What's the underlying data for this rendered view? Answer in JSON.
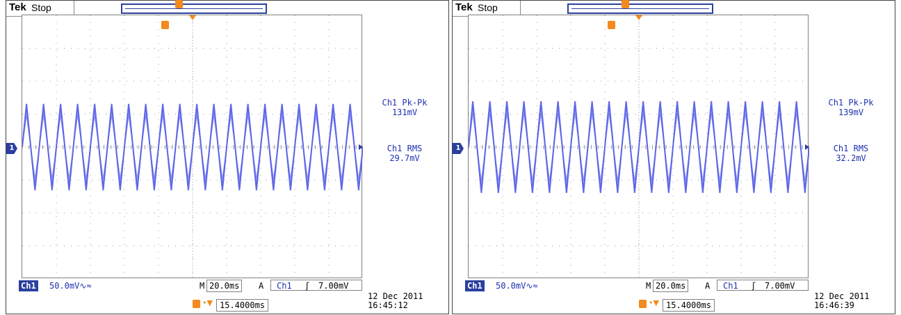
{
  "colors": {
    "trace": "#5a63e8",
    "channel": "#2a3f9e",
    "accent": "#f28a1d",
    "grid": "#9a9a9a"
  },
  "scopes": [
    {
      "brand": "Tek",
      "status": "Stop",
      "measurements": {
        "pkpk_label": "Ch1 Pk-Pk",
        "pkpk_value": "131mV",
        "rms_label": "Ch1 RMS",
        "rms_value": "29.7mV"
      },
      "channel_label": "Ch1",
      "channel_scale": "50.0mV∿≈",
      "m_label": "M",
      "timebase": "20.0ms",
      "a_label": "A",
      "trigger_source": "Ch1",
      "trigger_slope": "ʃ",
      "trigger_level": "7.00mV",
      "trigger_position": "15.4000ms",
      "date": "12 Dec 2011",
      "time": "16:45:12",
      "ch1_marker": "1",
      "trigger_icon": "T",
      "chart_data": {
        "type": "line",
        "amplitude_pkpk_mV": 131,
        "rms_mV": 29.7,
        "cycles_visible": 20,
        "timebase_ms_per_div": 20.0
      }
    },
    {
      "brand": "Tek",
      "status": "Stop",
      "measurements": {
        "pkpk_label": "Ch1 Pk-Pk",
        "pkpk_value": "139mV",
        "rms_label": "Ch1 RMS",
        "rms_value": "32.2mV"
      },
      "channel_label": "Ch1",
      "channel_scale": "50.0mV∿≈",
      "m_label": "M",
      "timebase": "20.0ms",
      "a_label": "A",
      "trigger_source": "Ch1",
      "trigger_slope": "ʃ",
      "trigger_level": "7.00mV",
      "trigger_position": "15.4000ms",
      "date": "12 Dec 2011",
      "time": "16:46:39",
      "ch1_marker": "1",
      "trigger_icon": "T",
      "chart_data": {
        "type": "line",
        "amplitude_pkpk_mV": 139,
        "rms_mV": 32.2,
        "cycles_visible": 20,
        "timebase_ms_per_div": 20.0
      }
    }
  ]
}
